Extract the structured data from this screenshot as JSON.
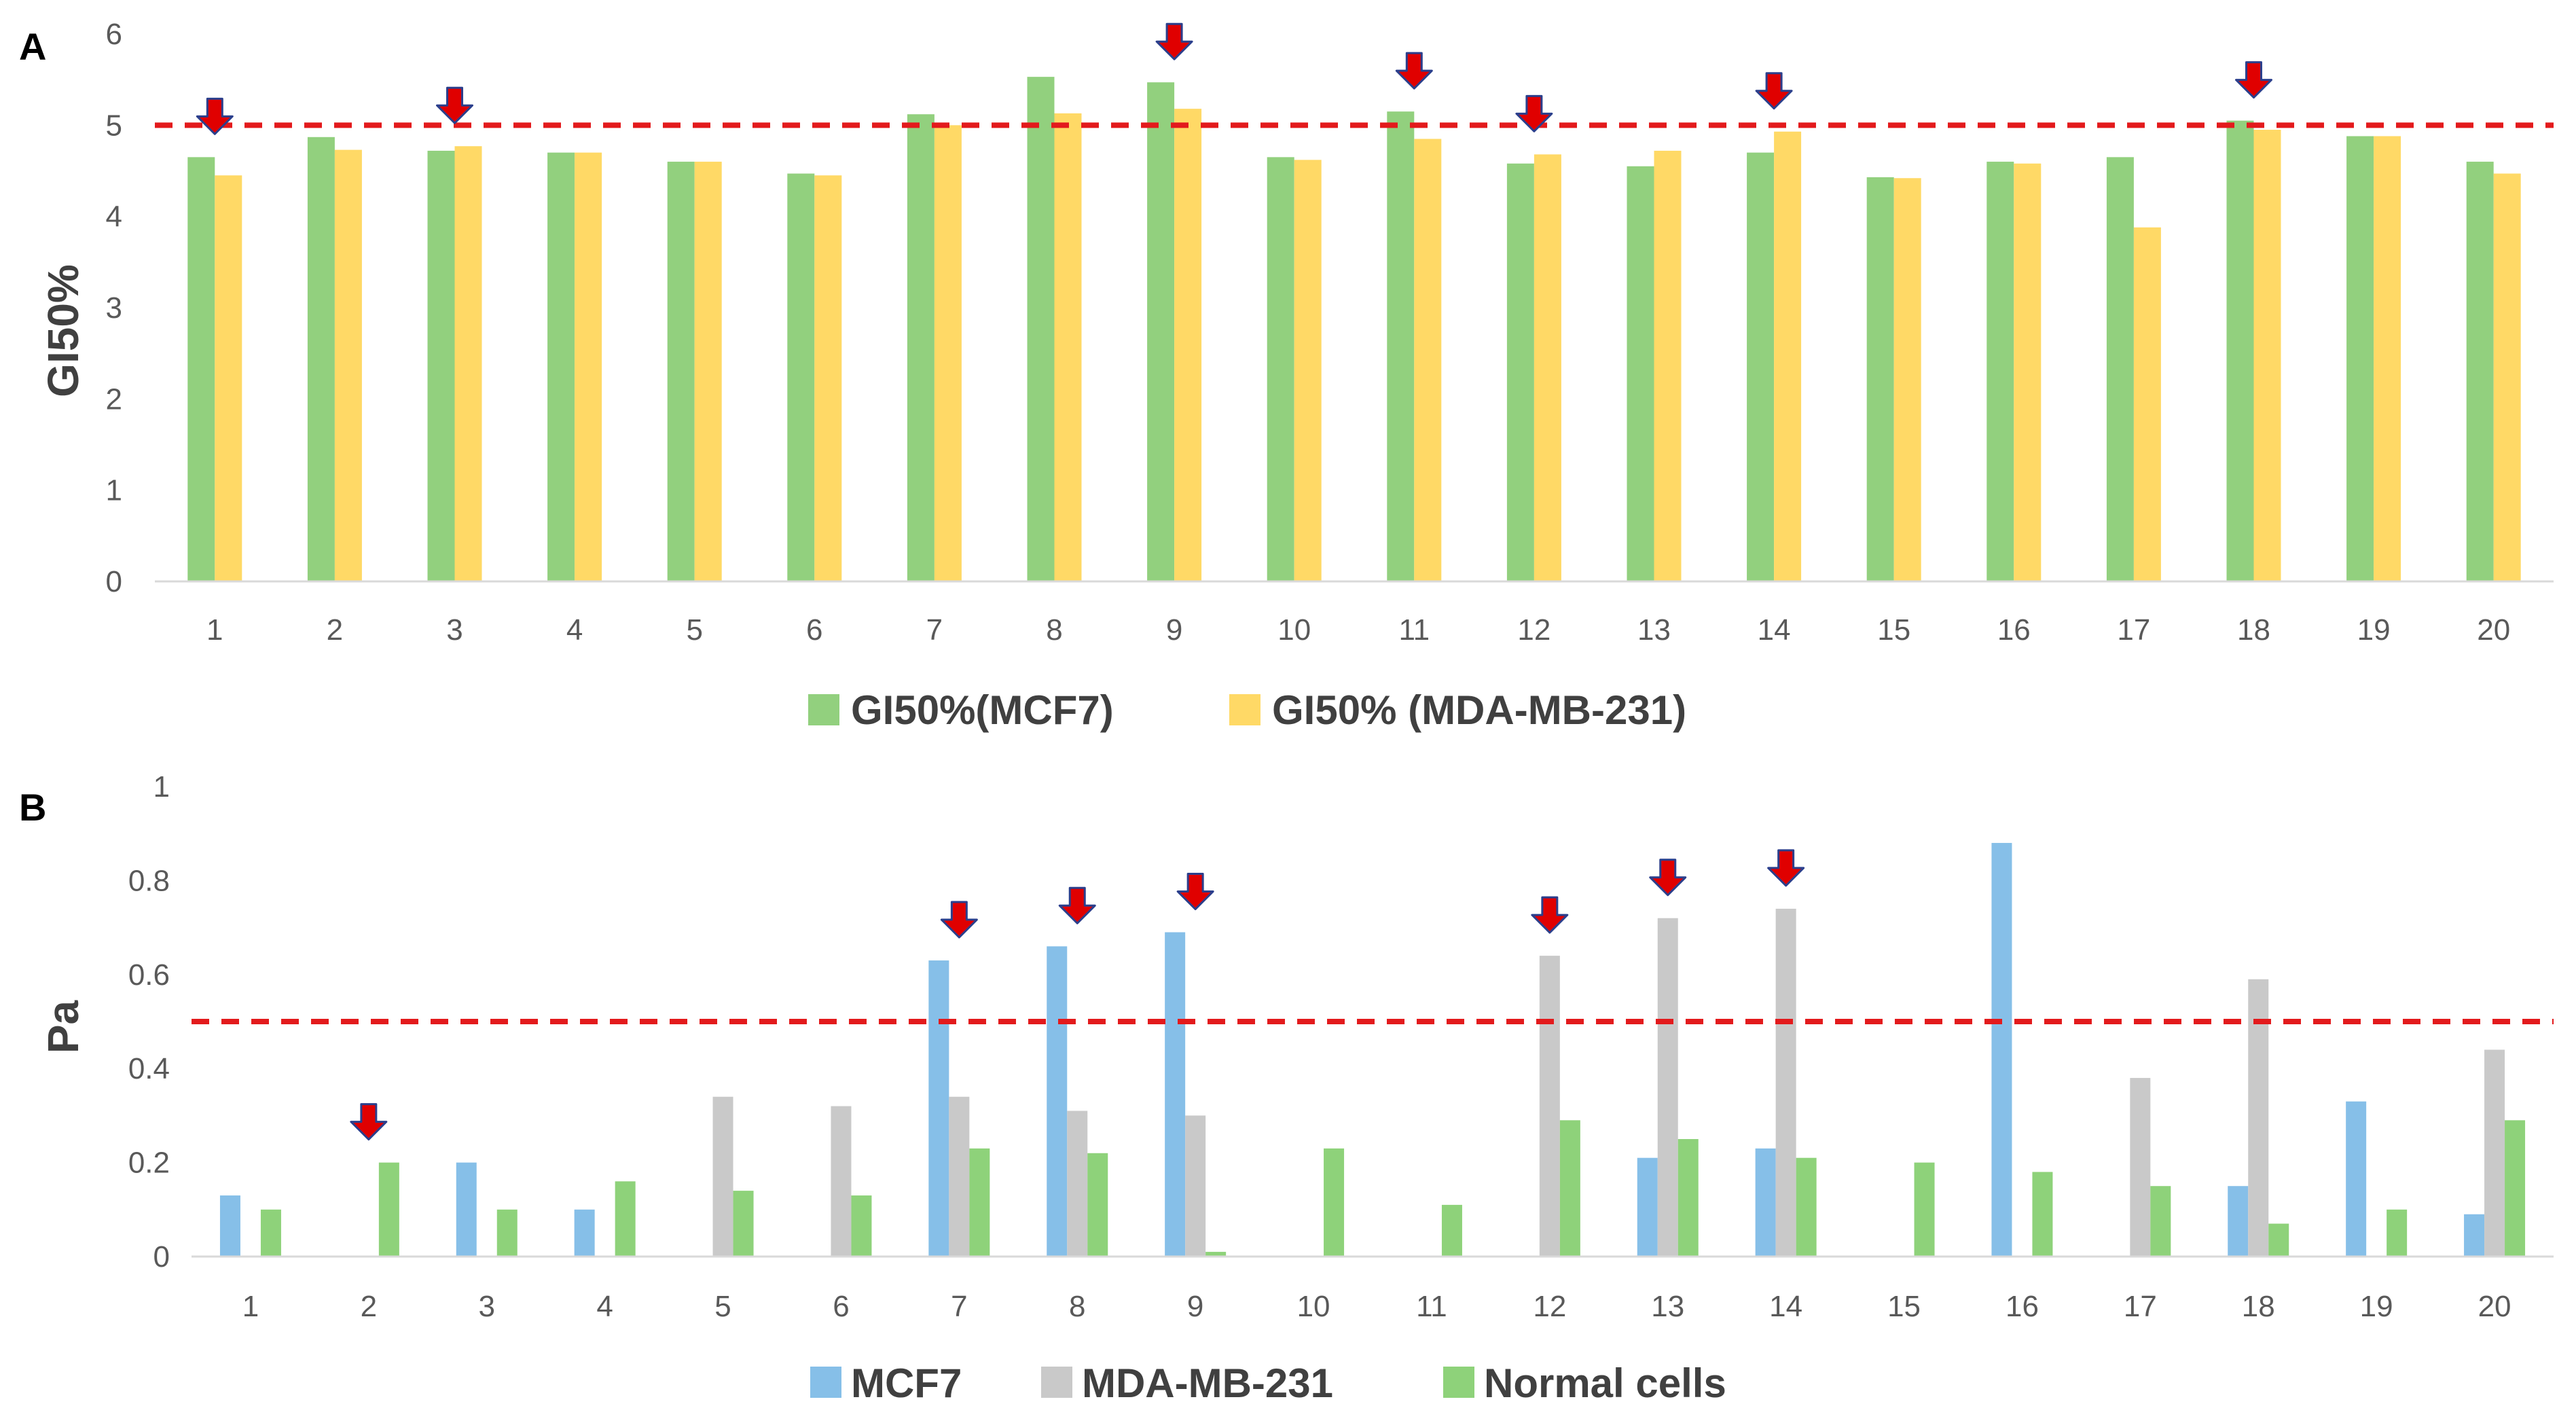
{
  "chart_data": [
    {
      "type": "bar",
      "panel": "A",
      "ylabel": "GI50%",
      "xlabel": "",
      "ylim": [
        0,
        6
      ],
      "yticks": [
        "0",
        "1",
        "2",
        "3",
        "4",
        "5",
        "6"
      ],
      "categories": [
        "1",
        "2",
        "3",
        "4",
        "5",
        "6",
        "7",
        "8",
        "9",
        "10",
        "11",
        "12",
        "13",
        "14",
        "15",
        "16",
        "17",
        "18",
        "19",
        "20"
      ],
      "series": [
        {
          "name": "GI50%(MCF7)",
          "color": "#92d07e",
          "values": [
            4.65,
            4.87,
            4.72,
            4.7,
            4.6,
            4.47,
            5.12,
            5.53,
            5.47,
            4.65,
            5.15,
            4.58,
            4.55,
            4.7,
            4.43,
            4.6,
            4.65,
            5.05,
            4.88,
            4.6
          ]
        },
        {
          "name": "GI50% (MDA-MB-231)",
          "color": "#ffd966",
          "values": [
            4.45,
            4.73,
            4.77,
            4.7,
            4.6,
            4.45,
            5.0,
            5.13,
            5.18,
            4.62,
            4.85,
            4.68,
            4.72,
            4.93,
            4.42,
            4.58,
            3.88,
            4.95,
            4.88,
            4.47
          ]
        }
      ],
      "threshold": {
        "value": 5,
        "color": "#e31a1c",
        "style": "dashed"
      },
      "arrow_marks": [
        "1",
        "3",
        "9",
        "11",
        "12",
        "14",
        "18"
      ],
      "arrow_color": "#e00000",
      "legend_position": "bottom"
    },
    {
      "type": "bar",
      "panel": "B",
      "ylabel": "Pa",
      "xlabel": "",
      "ylim": [
        0,
        1
      ],
      "yticks": [
        "0",
        "0.2",
        "0.4",
        "0.6",
        "0.8",
        "1"
      ],
      "categories": [
        "1",
        "2",
        "3",
        "4",
        "5",
        "6",
        "7",
        "8",
        "9",
        "10",
        "11",
        "12",
        "13",
        "14",
        "15",
        "16",
        "17",
        "18",
        "19",
        "20"
      ],
      "series": [
        {
          "name": "MCF7",
          "color": "#86bfe8",
          "values": [
            0.13,
            0,
            0.2,
            0.1,
            0,
            0,
            0.63,
            0.66,
            0.69,
            0,
            0,
            0,
            0.21,
            0.23,
            0,
            0.88,
            0,
            0.15,
            0.33,
            0.09
          ]
        },
        {
          "name": "MDA-MB-231",
          "color": "#c9c9c9",
          "values": [
            0,
            0,
            0,
            0,
            0.34,
            0.32,
            0.34,
            0.31,
            0.3,
            0,
            0,
            0.64,
            0.72,
            0.74,
            0,
            0,
            0.38,
            0.59,
            0,
            0.44
          ]
        },
        {
          "name": "Normal cells",
          "color": "#8ed27a",
          "values": [
            0.1,
            0.2,
            0.1,
            0.16,
            0.14,
            0.13,
            0.23,
            0.22,
            0.01,
            0.23,
            0.11,
            0.29,
            0.25,
            0.21,
            0.2,
            0.18,
            0.15,
            0.07,
            0.1,
            0.29
          ]
        }
      ],
      "threshold": {
        "value": 0.5,
        "color": "#e31a1c",
        "style": "dashed"
      },
      "arrow_marks": [
        "2",
        "7",
        "8",
        "9",
        "12",
        "13",
        "14"
      ],
      "arrow_color": "#e00000",
      "legend_position": "bottom"
    }
  ]
}
